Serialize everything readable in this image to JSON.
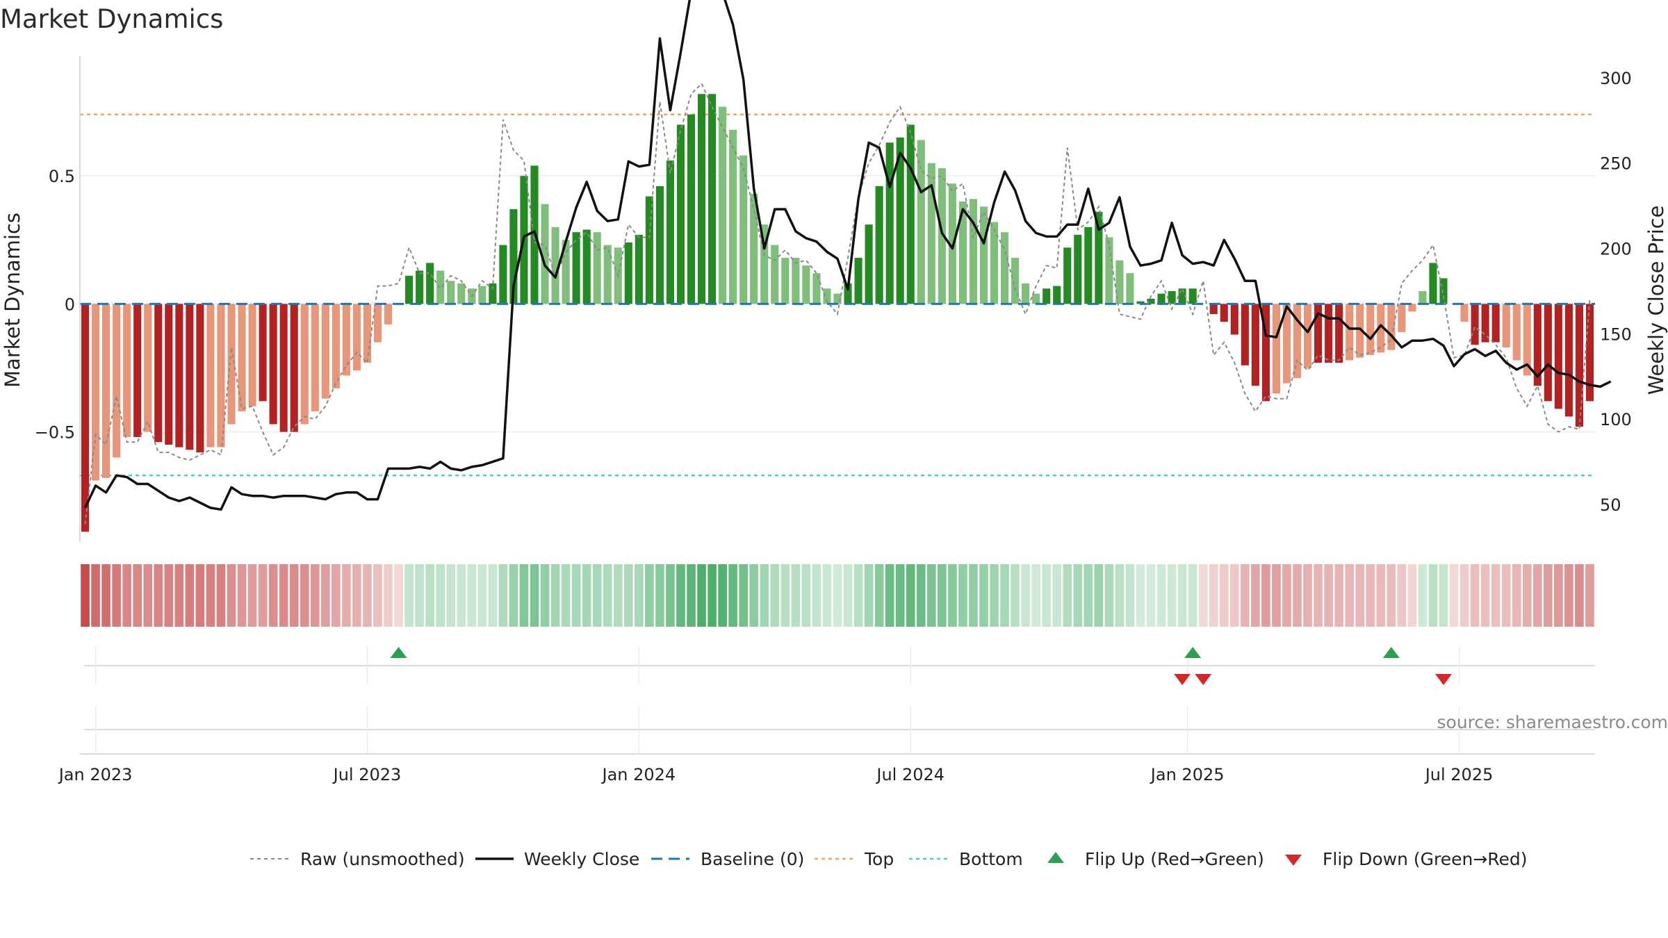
{
  "chart_data": {
    "type": "bar",
    "title": "Market Dynamics",
    "ylabel": "Market Dynamics",
    "y2label": "Weekly Close Price",
    "ylim": [
      -0.93,
      0.97
    ],
    "y2lim": [
      28,
      313
    ],
    "yticks": [
      {
        "value": 0.5,
        "label": "0.5"
      },
      {
        "value": 0,
        "label": "0"
      },
      {
        "value": -0.5,
        "label": "−0.5"
      }
    ],
    "y2ticks": [
      {
        "value": 300,
        "label": "300"
      },
      {
        "value": 250,
        "label": "250"
      },
      {
        "value": 200,
        "label": "200"
      },
      {
        "value": 150,
        "label": "150"
      },
      {
        "value": 100,
        "label": "100"
      },
      {
        "value": 50,
        "label": "50"
      }
    ],
    "xticks": [
      {
        "value": 1.5,
        "label": "Jan 2023"
      },
      {
        "value": 27.5,
        "label": "Jul 2023"
      },
      {
        "value": 53.5,
        "label": "Jan 2024"
      },
      {
        "value": 79.5,
        "label": "Jul 2024"
      },
      {
        "value": 106,
        "label": "Jan 2025"
      },
      {
        "value": 132,
        "label": "Jul 2025"
      }
    ],
    "grid": true,
    "legend_position": "bottom-center",
    "colors": {
      "strong_up": "#238b22",
      "weak_up": "#7fbf7b",
      "strong_down": "#b22222",
      "weak_down": "#e8967a",
      "raw": "#8a8a8a",
      "close": "#111111",
      "baseline": "#1f77b4",
      "top": "#f4a460",
      "bottom": "#48d1cc",
      "flip_up": "#2ca050",
      "flip_down": "#d62728"
    },
    "bar_values": [
      -0.89,
      -0.69,
      -0.68,
      -0.6,
      -0.52,
      -0.52,
      -0.5,
      -0.54,
      -0.55,
      -0.56,
      -0.57,
      -0.58,
      -0.56,
      -0.56,
      -0.47,
      -0.42,
      -0.4,
      -0.38,
      -0.47,
      -0.5,
      -0.5,
      -0.47,
      -0.42,
      -0.37,
      -0.33,
      -0.28,
      -0.26,
      -0.23,
      -0.15,
      -0.08,
      0,
      0.11,
      0.13,
      0.16,
      0.13,
      0.09,
      0.08,
      0.06,
      0.07,
      0.08,
      0.23,
      0.37,
      0.5,
      0.54,
      0.39,
      0.3,
      0.25,
      0.28,
      0.29,
      0.28,
      0.23,
      0.22,
      0.24,
      0.27,
      0.42,
      0.46,
      0.56,
      0.7,
      0.74,
      0.82,
      0.82,
      0.77,
      0.68,
      0.58,
      0.43,
      0.31,
      0.23,
      0.18,
      0.18,
      0.15,
      0.12,
      0.06,
      0.04,
      0.08,
      0.18,
      0.31,
      0.46,
      0.63,
      0.65,
      0.7,
      0.64,
      0.55,
      0.53,
      0.47,
      0.4,
      0.41,
      0.38,
      0.32,
      0.28,
      0.18,
      0.08,
      0.04,
      0.06,
      0.07,
      0.22,
      0.27,
      0.3,
      0.36,
      0.26,
      0.17,
      0.12,
      0.01,
      0.02,
      0.04,
      0.05,
      0.06,
      0.06,
      0,
      -0.04,
      -0.07,
      -0.12,
      -0.24,
      -0.32,
      -0.38,
      -0.35,
      -0.31,
      -0.29,
      -0.25,
      -0.23,
      -0.23,
      -0.23,
      -0.22,
      -0.21,
      -0.2,
      -0.19,
      -0.18,
      -0.11,
      -0.03,
      0.05,
      0.16,
      0.1,
      0,
      -0.07,
      -0.16,
      -0.15,
      -0.15,
      -0.17,
      -0.22,
      -0.28,
      -0.32,
      -0.38,
      -0.41,
      -0.44,
      -0.48,
      -0.38
    ],
    "bar_strength": [
      1,
      0,
      0,
      0,
      0,
      1,
      0,
      1,
      1,
      1,
      1,
      1,
      0,
      0,
      0,
      0,
      0,
      1,
      1,
      1,
      1,
      0,
      0,
      0,
      0,
      0,
      0,
      0,
      0,
      0,
      0,
      1,
      1,
      1,
      0,
      0,
      0,
      0,
      0,
      1,
      1,
      1,
      1,
      1,
      0,
      0,
      0,
      1,
      1,
      0,
      0,
      0,
      1,
      1,
      1,
      1,
      1,
      1,
      1,
      1,
      1,
      0,
      0,
      0,
      0,
      0,
      0,
      0,
      0,
      0,
      0,
      0,
      0,
      1,
      1,
      1,
      1,
      1,
      1,
      1,
      0,
      0,
      0,
      0,
      0,
      0,
      0,
      0,
      0,
      0,
      0,
      0,
      1,
      1,
      1,
      1,
      1,
      1,
      0,
      0,
      0,
      1,
      1,
      1,
      1,
      1,
      1,
      0,
      1,
      1,
      1,
      1,
      1,
      1,
      0,
      0,
      0,
      0,
      1,
      1,
      1,
      0,
      0,
      0,
      0,
      0,
      0,
      0,
      0,
      1,
      1,
      0,
      0,
      1,
      1,
      1,
      0,
      0,
      0,
      1,
      1,
      1,
      1,
      1,
      1,
      1,
      0
    ],
    "raw_values": [
      -0.86,
      -0.51,
      -0.55,
      -0.36,
      -0.54,
      -0.54,
      -0.46,
      -0.58,
      -0.58,
      -0.6,
      -0.61,
      -0.59,
      -0.57,
      -0.59,
      -0.17,
      -0.41,
      -0.4,
      -0.5,
      -0.59,
      -0.56,
      -0.48,
      -0.44,
      -0.45,
      -0.4,
      -0.31,
      -0.24,
      -0.19,
      -0.23,
      0.07,
      0.07,
      0.08,
      0.22,
      0.12,
      0.12,
      0.06,
      0.11,
      0.09,
      0.03,
      0.09,
      0.06,
      0.72,
      0.6,
      0.56,
      0.24,
      0.23,
      0.11,
      0.2,
      0.25,
      0.28,
      0.21,
      0.22,
      0.11,
      0.31,
      0.26,
      0.26,
      0.79,
      0.51,
      0.68,
      0.82,
      0.86,
      0.77,
      0.69,
      0.61,
      0.53,
      0.37,
      0.19,
      0.17,
      0.21,
      0.16,
      0.17,
      0.12,
      0.01,
      -0.04,
      0.18,
      0.42,
      0.55,
      0.62,
      0.71,
      0.77,
      0.67,
      0.52,
      0.49,
      0.5,
      0.44,
      0.47,
      0.26,
      0.36,
      0.29,
      0.21,
      0.06,
      -0.04,
      0.07,
      0.15,
      0.14,
      0.61,
      0.29,
      0.32,
      0.38,
      0.23,
      -0.04,
      -0.05,
      -0.06,
      0.03,
      0.09,
      -0.02,
      0.06,
      -0.04,
      0.09,
      -0.2,
      -0.15,
      -0.23,
      -0.35,
      -0.42,
      -0.36,
      -0.37,
      -0.37,
      -0.22,
      -0.26,
      -0.2,
      -0.22,
      -0.22,
      -0.17,
      -0.2,
      -0.19,
      -0.17,
      -0.14,
      0.08,
      0.13,
      0.17,
      0.23,
      0.03,
      -0.21,
      -0.2,
      -0.09,
      -0.12,
      -0.16,
      -0.21,
      -0.33,
      -0.4,
      -0.32,
      -0.47,
      -0.5,
      -0.48,
      -0.49,
      0.02
    ],
    "close_values": [
      48,
      61,
      57,
      67,
      66,
      62,
      62,
      58,
      54,
      52,
      54,
      51,
      48,
      47,
      60,
      56,
      55,
      55,
      54,
      55,
      55,
      55,
      54,
      53,
      56,
      57,
      57,
      53,
      53,
      71,
      71,
      71,
      72,
      71,
      75,
      71,
      70,
      72,
      73,
      75,
      77,
      178,
      207,
      210,
      190,
      183,
      204,
      224,
      239,
      222,
      216,
      217,
      251,
      248,
      249,
      323,
      281,
      315,
      351,
      368,
      359,
      350,
      331,
      299,
      235,
      200,
      223,
      223,
      210,
      206,
      204,
      198,
      194,
      176,
      229,
      262,
      259,
      236,
      256,
      247,
      233,
      237,
      209,
      200,
      223,
      215,
      203,
      227,
      245,
      234,
      216,
      209,
      207,
      207,
      214,
      214,
      235,
      211,
      215,
      230,
      201,
      190,
      191,
      193,
      215,
      196,
      191,
      192,
      190,
      205,
      194,
      181,
      181,
      149,
      148,
      166,
      158,
      151,
      162,
      159,
      159,
      153,
      153,
      147,
      155,
      149,
      142,
      146,
      146,
      147,
      143,
      131,
      138,
      141,
      137,
      140,
      133,
      129,
      132,
      125,
      132,
      127,
      126,
      122,
      120,
      119,
      122
    ]
  },
  "flips": {
    "up": [
      30.5,
      106.5,
      125.5
    ],
    "down": [
      105.5,
      107.5,
      130.5
    ]
  },
  "legend": {
    "raw": "Raw (unsmoothed)",
    "close": "Weekly Close",
    "baseline": "Baseline (0)",
    "top": "Top",
    "bottom": "Bottom",
    "flip_up": "Flip Up (Red→Green)",
    "flip_down": "Flip Down (Green→Red)"
  },
  "reference_lines": {
    "top": 0.74,
    "bottom": -0.67
  },
  "source": "source: sharemaestro.com"
}
